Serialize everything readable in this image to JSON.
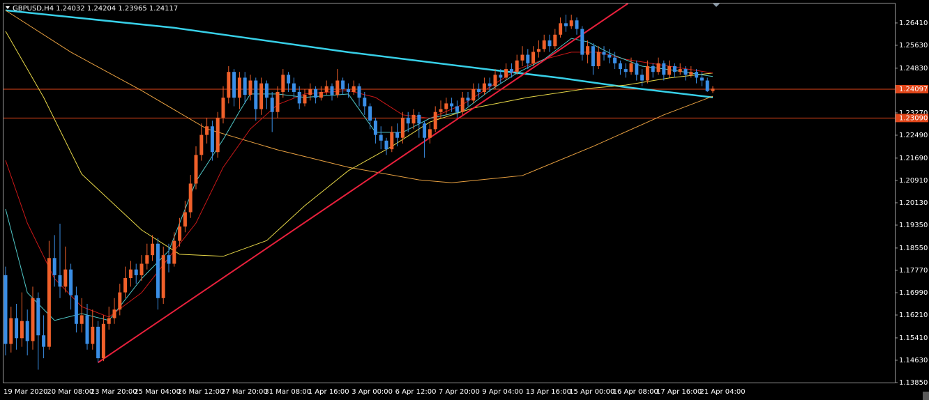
{
  "chart_data": {
    "type": "candlestick",
    "symbol": "GBPUSD,H4",
    "categories": [
      "19 Mar 2020",
      null,
      null,
      null,
      null,
      null,
      null,
      null,
      "20 Mar 08:00",
      null,
      null,
      null,
      null,
      null,
      null,
      null,
      "23 Mar 20:00",
      null,
      null,
      null,
      null,
      null,
      null,
      null,
      "25 Mar 04:00",
      null,
      null,
      null,
      null,
      null,
      null,
      null,
      "26 Mar 12:00",
      null,
      null,
      null,
      null,
      null,
      null,
      null,
      "27 Mar 20:00",
      null,
      null,
      null,
      null,
      null,
      null,
      null,
      "31 Mar 08:00",
      null,
      null,
      null,
      null,
      null,
      null,
      null,
      "1 Apr 16:00",
      null,
      null,
      null,
      null,
      null,
      null,
      null,
      "3 Apr 00:00",
      null,
      null,
      null,
      null,
      null,
      null,
      null,
      "6 Apr 12:00",
      null,
      null,
      null,
      null,
      null,
      null,
      null,
      "7 Apr 20:00",
      null,
      null,
      null,
      null,
      null,
      null,
      null,
      "9 Apr 04:00",
      null,
      null,
      null,
      null,
      null,
      null,
      null,
      "13 Apr 16:00",
      null,
      null,
      null,
      null,
      null,
      null,
      null,
      "15 Apr 00:00",
      null,
      null,
      null,
      null,
      null,
      null,
      null,
      "16 Apr 08:00",
      null,
      null,
      null,
      null,
      null,
      null,
      null,
      "17 Apr 16:00",
      null,
      null,
      null,
      null,
      null,
      null,
      null,
      "21 Apr 04:00",
      null,
      null
    ],
    "open": [
      1.176,
      1.152,
      1.161,
      1.154,
      1.16,
      1.153,
      1.168,
      1.155,
      1.151,
      1.182,
      1.176,
      1.172,
      1.178,
      1.169,
      1.159,
      1.162,
      1.152,
      1.158,
      1.147,
      1.159,
      1.161,
      1.164,
      1.17,
      1.175,
      1.178,
      1.176,
      1.18,
      1.183,
      1.187,
      1.168,
      1.183,
      1.18,
      1.188,
      1.193,
      1.198,
      1.208,
      1.218,
      1.225,
      1.228,
      1.219,
      1.231,
      1.238,
      1.247,
      1.238,
      1.245,
      1.239,
      1.244,
      1.234,
      1.243,
      1.238,
      1.233,
      1.24,
      1.246,
      1.243,
      1.24,
      1.236,
      1.239,
      1.241,
      1.238,
      1.24,
      1.242,
      1.239,
      1.244,
      1.241,
      1.24,
      1.242,
      1.238,
      1.235,
      1.23,
      1.225,
      1.223,
      1.22,
      1.226,
      1.224,
      1.231,
      1.229,
      1.232,
      1.229,
      1.224,
      1.227,
      1.233,
      1.234,
      1.236,
      1.235,
      1.233,
      1.238,
      1.237,
      1.241,
      1.24,
      1.243,
      1.242,
      1.246,
      1.245,
      1.248,
      1.247,
      1.251,
      1.253,
      1.25,
      1.254,
      1.255,
      1.258,
      1.256,
      1.26,
      1.264,
      1.263,
      1.265,
      1.262,
      1.253,
      1.256,
      1.249,
      1.254,
      1.253,
      1.252,
      1.25,
      1.248,
      1.247,
      1.25,
      1.246,
      1.244,
      1.249,
      1.247,
      1.25,
      1.246,
      1.249,
      1.247,
      1.248,
      1.246,
      1.247,
      1.245,
      1.244,
      1.24032
    ],
    "high": [
      1.179,
      1.165,
      1.166,
      1.17,
      1.164,
      1.172,
      1.17,
      1.162,
      1.188,
      1.19,
      1.194,
      1.186,
      1.18,
      1.172,
      1.168,
      1.166,
      1.164,
      1.16,
      1.162,
      1.165,
      1.168,
      1.173,
      1.179,
      1.181,
      1.18,
      1.183,
      1.187,
      1.19,
      1.189,
      1.186,
      1.187,
      1.191,
      1.196,
      1.202,
      1.211,
      1.221,
      1.229,
      1.231,
      1.23,
      1.233,
      1.242,
      1.249,
      1.248,
      1.247,
      1.247,
      1.246,
      1.245,
      1.245,
      1.244,
      1.24,
      1.242,
      1.248,
      1.247,
      1.245,
      1.242,
      1.241,
      1.243,
      1.242,
      1.242,
      1.244,
      1.243,
      1.248,
      1.245,
      1.243,
      1.244,
      1.243,
      1.24,
      1.236,
      1.231,
      1.228,
      1.224,
      1.228,
      1.229,
      1.233,
      1.233,
      1.234,
      1.233,
      1.23,
      1.229,
      1.235,
      1.237,
      1.238,
      1.238,
      1.237,
      1.24,
      1.24,
      1.243,
      1.243,
      1.245,
      1.245,
      1.248,
      1.248,
      1.25,
      1.25,
      1.253,
      1.256,
      1.255,
      1.256,
      1.258,
      1.26,
      1.26,
      1.262,
      1.266,
      1.267,
      1.267,
      1.266,
      1.263,
      1.258,
      1.257,
      1.256,
      1.256,
      1.255,
      1.254,
      1.251,
      1.25,
      1.252,
      1.251,
      1.248,
      1.251,
      1.25,
      1.252,
      1.251,
      1.251,
      1.25,
      1.25,
      1.249,
      1.249,
      1.248,
      1.247,
      1.245,
      1.24204
    ],
    "low": [
      1.148,
      1.149,
      1.15,
      1.151,
      1.148,
      1.15,
      1.143,
      1.147,
      1.15,
      1.172,
      1.168,
      1.17,
      1.164,
      1.156,
      1.156,
      1.15,
      1.15,
      1.1455,
      1.146,
      1.157,
      1.159,
      1.162,
      1.168,
      1.172,
      1.173,
      1.174,
      1.178,
      1.181,
      1.164,
      1.166,
      1.177,
      1.179,
      1.186,
      1.191,
      1.196,
      1.206,
      1.216,
      1.222,
      1.216,
      1.217,
      1.229,
      1.236,
      1.235,
      1.234,
      1.236,
      1.237,
      1.23,
      1.232,
      1.234,
      1.226,
      1.231,
      1.238,
      1.24,
      1.238,
      1.234,
      1.235,
      1.237,
      1.236,
      1.237,
      1.239,
      1.237,
      1.238,
      1.239,
      1.238,
      1.239,
      1.235,
      1.232,
      1.227,
      1.222,
      1.22,
      1.218,
      1.219,
      1.221,
      1.222,
      1.226,
      1.227,
      1.224,
      1.217,
      1.222,
      1.226,
      1.231,
      1.232,
      1.233,
      1.231,
      1.232,
      1.235,
      1.236,
      1.238,
      1.239,
      1.24,
      1.241,
      1.243,
      1.244,
      1.245,
      1.246,
      1.249,
      1.248,
      1.249,
      1.252,
      1.254,
      1.254,
      1.255,
      1.259,
      1.261,
      1.262,
      1.26,
      1.251,
      1.25,
      1.246,
      1.248,
      1.251,
      1.25,
      1.248,
      1.246,
      1.245,
      1.246,
      1.244,
      1.242,
      1.243,
      1.245,
      1.246,
      1.244,
      1.245,
      1.245,
      1.246,
      1.244,
      1.245,
      1.243,
      1.242,
      1.24,
      1.23965
    ],
    "close": [
      1.152,
      1.161,
      1.154,
      1.16,
      1.153,
      1.168,
      1.155,
      1.151,
      1.182,
      1.176,
      1.172,
      1.178,
      1.169,
      1.159,
      1.162,
      1.152,
      1.158,
      1.147,
      1.159,
      1.161,
      1.164,
      1.17,
      1.175,
      1.178,
      1.176,
      1.18,
      1.183,
      1.187,
      1.168,
      1.183,
      1.18,
      1.188,
      1.193,
      1.198,
      1.208,
      1.218,
      1.225,
      1.228,
      1.219,
      1.231,
      1.238,
      1.247,
      1.238,
      1.245,
      1.239,
      1.244,
      1.234,
      1.243,
      1.238,
      1.233,
      1.24,
      1.246,
      1.243,
      1.24,
      1.236,
      1.239,
      1.241,
      1.238,
      1.24,
      1.242,
      1.239,
      1.244,
      1.241,
      1.24,
      1.242,
      1.238,
      1.235,
      1.23,
      1.225,
      1.223,
      1.22,
      1.226,
      1.224,
      1.231,
      1.229,
      1.232,
      1.229,
      1.224,
      1.227,
      1.233,
      1.234,
      1.236,
      1.235,
      1.233,
      1.238,
      1.237,
      1.241,
      1.24,
      1.243,
      1.242,
      1.246,
      1.245,
      1.248,
      1.247,
      1.251,
      1.253,
      1.25,
      1.254,
      1.255,
      1.258,
      1.256,
      1.26,
      1.264,
      1.263,
      1.265,
      1.262,
      1.253,
      1.256,
      1.249,
      1.254,
      1.253,
      1.252,
      1.25,
      1.248,
      1.247,
      1.25,
      1.246,
      1.244,
      1.249,
      1.247,
      1.25,
      1.246,
      1.249,
      1.247,
      1.248,
      1.246,
      1.247,
      1.245,
      1.244,
      1.2403,
      1.24117
    ],
    "up_color": "#f0602a",
    "down_color": "#3a8ee6",
    "ylim": [
      1.1385,
      1.2709
    ],
    "yticks": [
      {
        "value": 1.2641,
        "label": "1.26410"
      },
      {
        "value": 1.2563,
        "label": "1.25630"
      },
      {
        "value": 1.2483,
        "label": "1.24830"
      },
      {
        "value": 1.2327,
        "label": "1.23270"
      },
      {
        "value": 1.2249,
        "label": "1.22490"
      },
      {
        "value": 1.2169,
        "label": "1.21690"
      },
      {
        "value": 1.2091,
        "label": "1.20910"
      },
      {
        "value": 1.2013,
        "label": "1.20130"
      },
      {
        "value": 1.1935,
        "label": "1.19350"
      },
      {
        "value": 1.1855,
        "label": "1.18550"
      },
      {
        "value": 1.1777,
        "label": "1.17770"
      },
      {
        "value": 1.1699,
        "label": "1.16990"
      },
      {
        "value": 1.1621,
        "label": "1.16210"
      },
      {
        "value": 1.1541,
        "label": "1.15410"
      },
      {
        "value": 1.1463,
        "label": "1.14630"
      },
      {
        "value": 1.1385,
        "label": "1.13850"
      }
    ],
    "levels": [
      {
        "value": 1.24097,
        "color": "#e0461a"
      },
      {
        "value": 1.2309,
        "label": "1.23090",
        "color": "#e0461a"
      }
    ],
    "indicators": [
      {
        "color": "#38d0e8",
        "width": 2.5,
        "x": [
          0,
          31,
          63,
          89,
          102,
          114,
          130
        ],
        "values": [
          1.2685,
          1.2624,
          1.2539,
          1.2478,
          1.2449,
          1.2417,
          1.2381
        ]
      },
      {
        "color": "#e8a040",
        "width": 1,
        "x": [
          0,
          12,
          25,
          37,
          50,
          63,
          76,
          82,
          95,
          108,
          121,
          130
        ],
        "values": [
          1.2685,
          1.2539,
          1.2405,
          1.2271,
          1.2198,
          1.2137,
          1.2093,
          1.2083,
          1.2108,
          1.221,
          1.232,
          1.2385
        ]
      },
      {
        "color": "#e8d848",
        "width": 1,
        "x": [
          0,
          7,
          14,
          25,
          32,
          40,
          48,
          55,
          63,
          71,
          78,
          86,
          96,
          107,
          114,
          122,
          130
        ],
        "values": [
          1.2612,
          1.2381,
          1.2113,
          1.1918,
          1.1833,
          1.1826,
          1.1881,
          1.2003,
          1.2125,
          1.221,
          1.2295,
          1.2344,
          1.2381,
          1.2412,
          1.2424,
          1.2449,
          1.2466
        ]
      },
      {
        "color": "#c81818",
        "width": 1,
        "x": [
          0,
          4,
          9,
          14,
          19,
          25,
          30,
          35,
          40,
          45,
          50,
          55,
          63,
          68,
          73,
          78,
          84,
          89,
          94,
          99,
          104,
          109,
          114,
          122,
          130
        ],
        "values": [
          1.2161,
          1.1942,
          1.1748,
          1.165,
          1.1614,
          1.1699,
          1.1821,
          1.1942,
          1.2137,
          1.2271,
          1.2356,
          1.2393,
          1.2405,
          1.2381,
          1.232,
          1.2308,
          1.2356,
          1.2417,
          1.2478,
          1.2514,
          1.2539,
          1.2539,
          1.2514,
          1.249,
          1.2466
        ]
      },
      {
        "color": "#50c8c8",
        "width": 1,
        "x": [
          0,
          4,
          9,
          14,
          19,
          25,
          30,
          35,
          40,
          43,
          45,
          50,
          55,
          63,
          68,
          73,
          78,
          84,
          89,
          94,
          99,
          104,
          107,
          112,
          117,
          122,
          130
        ],
        "values": [
          1.1991,
          1.1699,
          1.1602,
          1.1626,
          1.1602,
          1.1748,
          1.1845,
          1.2088,
          1.2234,
          1.2332,
          1.2393,
          1.2393,
          1.2381,
          1.2393,
          1.2259,
          1.2259,
          1.2308,
          1.2332,
          1.2405,
          1.2466,
          1.2514,
          1.2587,
          1.2575,
          1.2527,
          1.249,
          1.2478,
          1.2454
        ]
      }
    ],
    "trendline": {
      "color": "#e8203c",
      "x": [
        17,
        114.4
      ],
      "values": [
        1.1455,
        1.2709
      ]
    }
  }
}
